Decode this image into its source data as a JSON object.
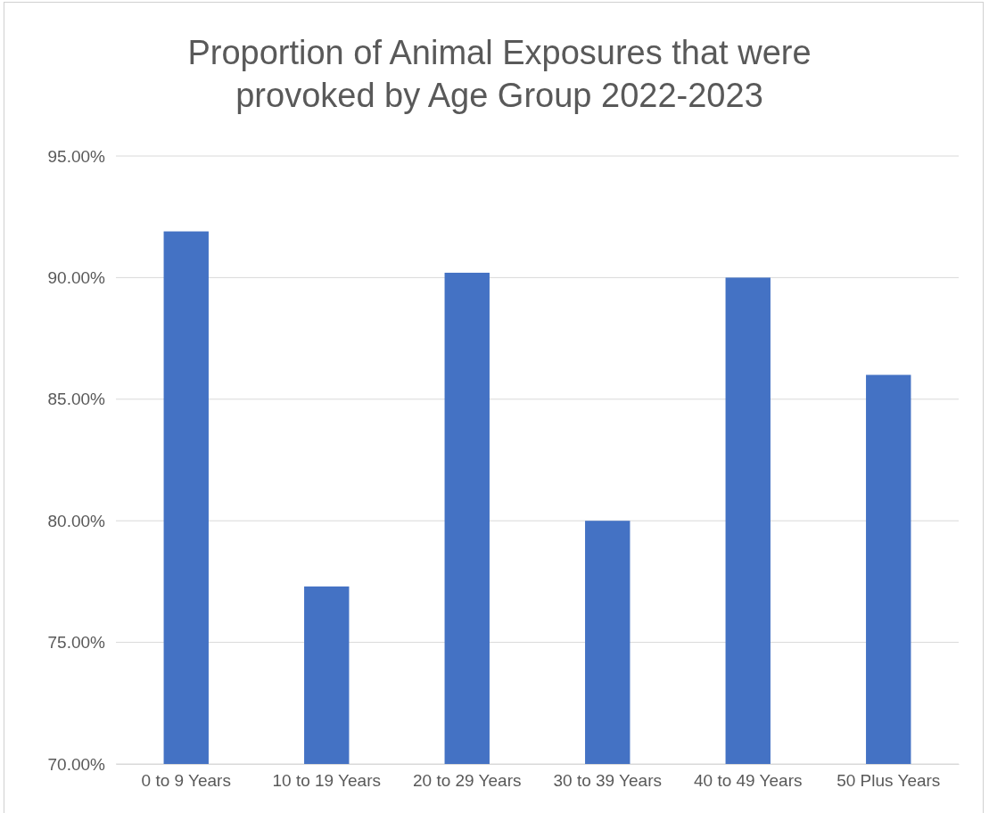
{
  "chart_data": {
    "type": "bar",
    "title": "Proportion of Animal Exposures that were provoked by Age Group 2022-2023",
    "categories": [
      "0 to 9 Years",
      "10 to 19 Years",
      "20 to 29 Years",
      "30 to 39 Years",
      "40 to 49 Years",
      "50 Plus Years"
    ],
    "values": [
      91.9,
      77.3,
      90.2,
      80.0,
      90.0,
      86.0
    ],
    "color": "#4472c4",
    "ylim": [
      70,
      95
    ],
    "yticks": [
      {
        "value": 70,
        "label": "70.00%"
      },
      {
        "value": 75,
        "label": "75.00%"
      },
      {
        "value": 80,
        "label": "80.00%"
      },
      {
        "value": 85,
        "label": "85.00%"
      },
      {
        "value": 90,
        "label": "90.00%"
      },
      {
        "value": 95,
        "label": "95.00%"
      }
    ],
    "grid": "y"
  }
}
